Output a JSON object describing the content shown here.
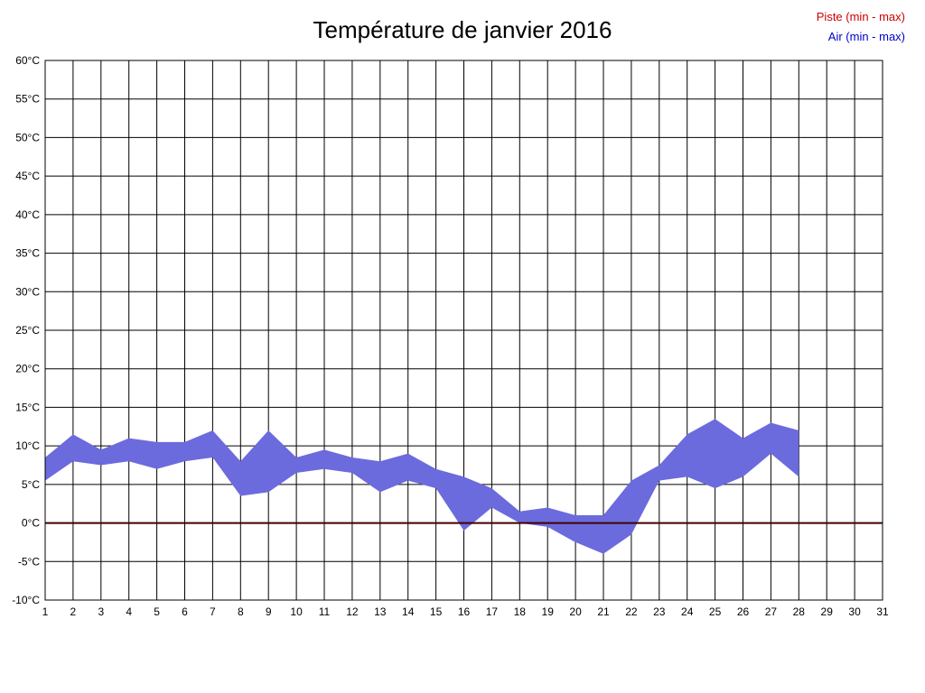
{
  "title": "Température de janvier 2016",
  "legend": {
    "piste": {
      "label": "Piste (min - max)",
      "color": "#cc0000"
    },
    "air": {
      "label": "Air (min - max)",
      "color": "#0000cc"
    }
  },
  "chart_data": {
    "type": "area",
    "title": "Température de janvier 2016",
    "xlabel": "",
    "ylabel": "",
    "grid": true,
    "xlim": [
      1,
      31
    ],
    "ylim": [
      -10,
      60
    ],
    "x_tick_labels": [
      "1",
      "2",
      "3",
      "4",
      "5",
      "6",
      "7",
      "8",
      "9",
      "10",
      "11",
      "12",
      "13",
      "14",
      "15",
      "16",
      "17",
      "18",
      "19",
      "20",
      "21",
      "22",
      "23",
      "24",
      "25",
      "26",
      "27",
      "28",
      "29",
      "30",
      "31"
    ],
    "y_tick_labels": [
      "60°C",
      "55°C",
      "50°C",
      "45°C",
      "40°C",
      "35°C",
      "30°C",
      "25°C",
      "20°C",
      "15°C",
      "10°C",
      "5°C",
      "0°C",
      "-5°C",
      "-10°C"
    ],
    "x": [
      1,
      2,
      3,
      4,
      5,
      6,
      7,
      8,
      9,
      10,
      11,
      12,
      13,
      14,
      15,
      16,
      17,
      18,
      19,
      20,
      21,
      22,
      23,
      24,
      25,
      26,
      27,
      28
    ],
    "series": [
      {
        "name": "Air min",
        "values": [
          5.5,
          8,
          7.5,
          8,
          7,
          8,
          8.5,
          3.5,
          4,
          6.5,
          7,
          6.5,
          4,
          5.5,
          4.5,
          -1,
          2,
          0,
          -0.5,
          -2.5,
          -4,
          -1.5,
          5.5,
          6,
          4.5,
          6,
          9,
          6
        ]
      },
      {
        "name": "Air max",
        "values": [
          8.5,
          11.5,
          9.5,
          11,
          10.5,
          10.5,
          12,
          8,
          12,
          8.5,
          9.5,
          8.5,
          8,
          9,
          7,
          6,
          4.5,
          1.5,
          2,
          1,
          1,
          5.5,
          7.5,
          11.5,
          13.5,
          11,
          13,
          12
        ]
      },
      {
        "name": "Piste min",
        "values_constant": 0,
        "x_range": [
          1,
          31
        ]
      },
      {
        "name": "Piste max",
        "values_constant": 0,
        "x_range": [
          1,
          31
        ]
      }
    ],
    "colors": {
      "air_band": "#6b6bdd",
      "piste_line": "#400000",
      "grid": "#000000",
      "border": "#000000"
    },
    "legend_position": "top-right"
  }
}
